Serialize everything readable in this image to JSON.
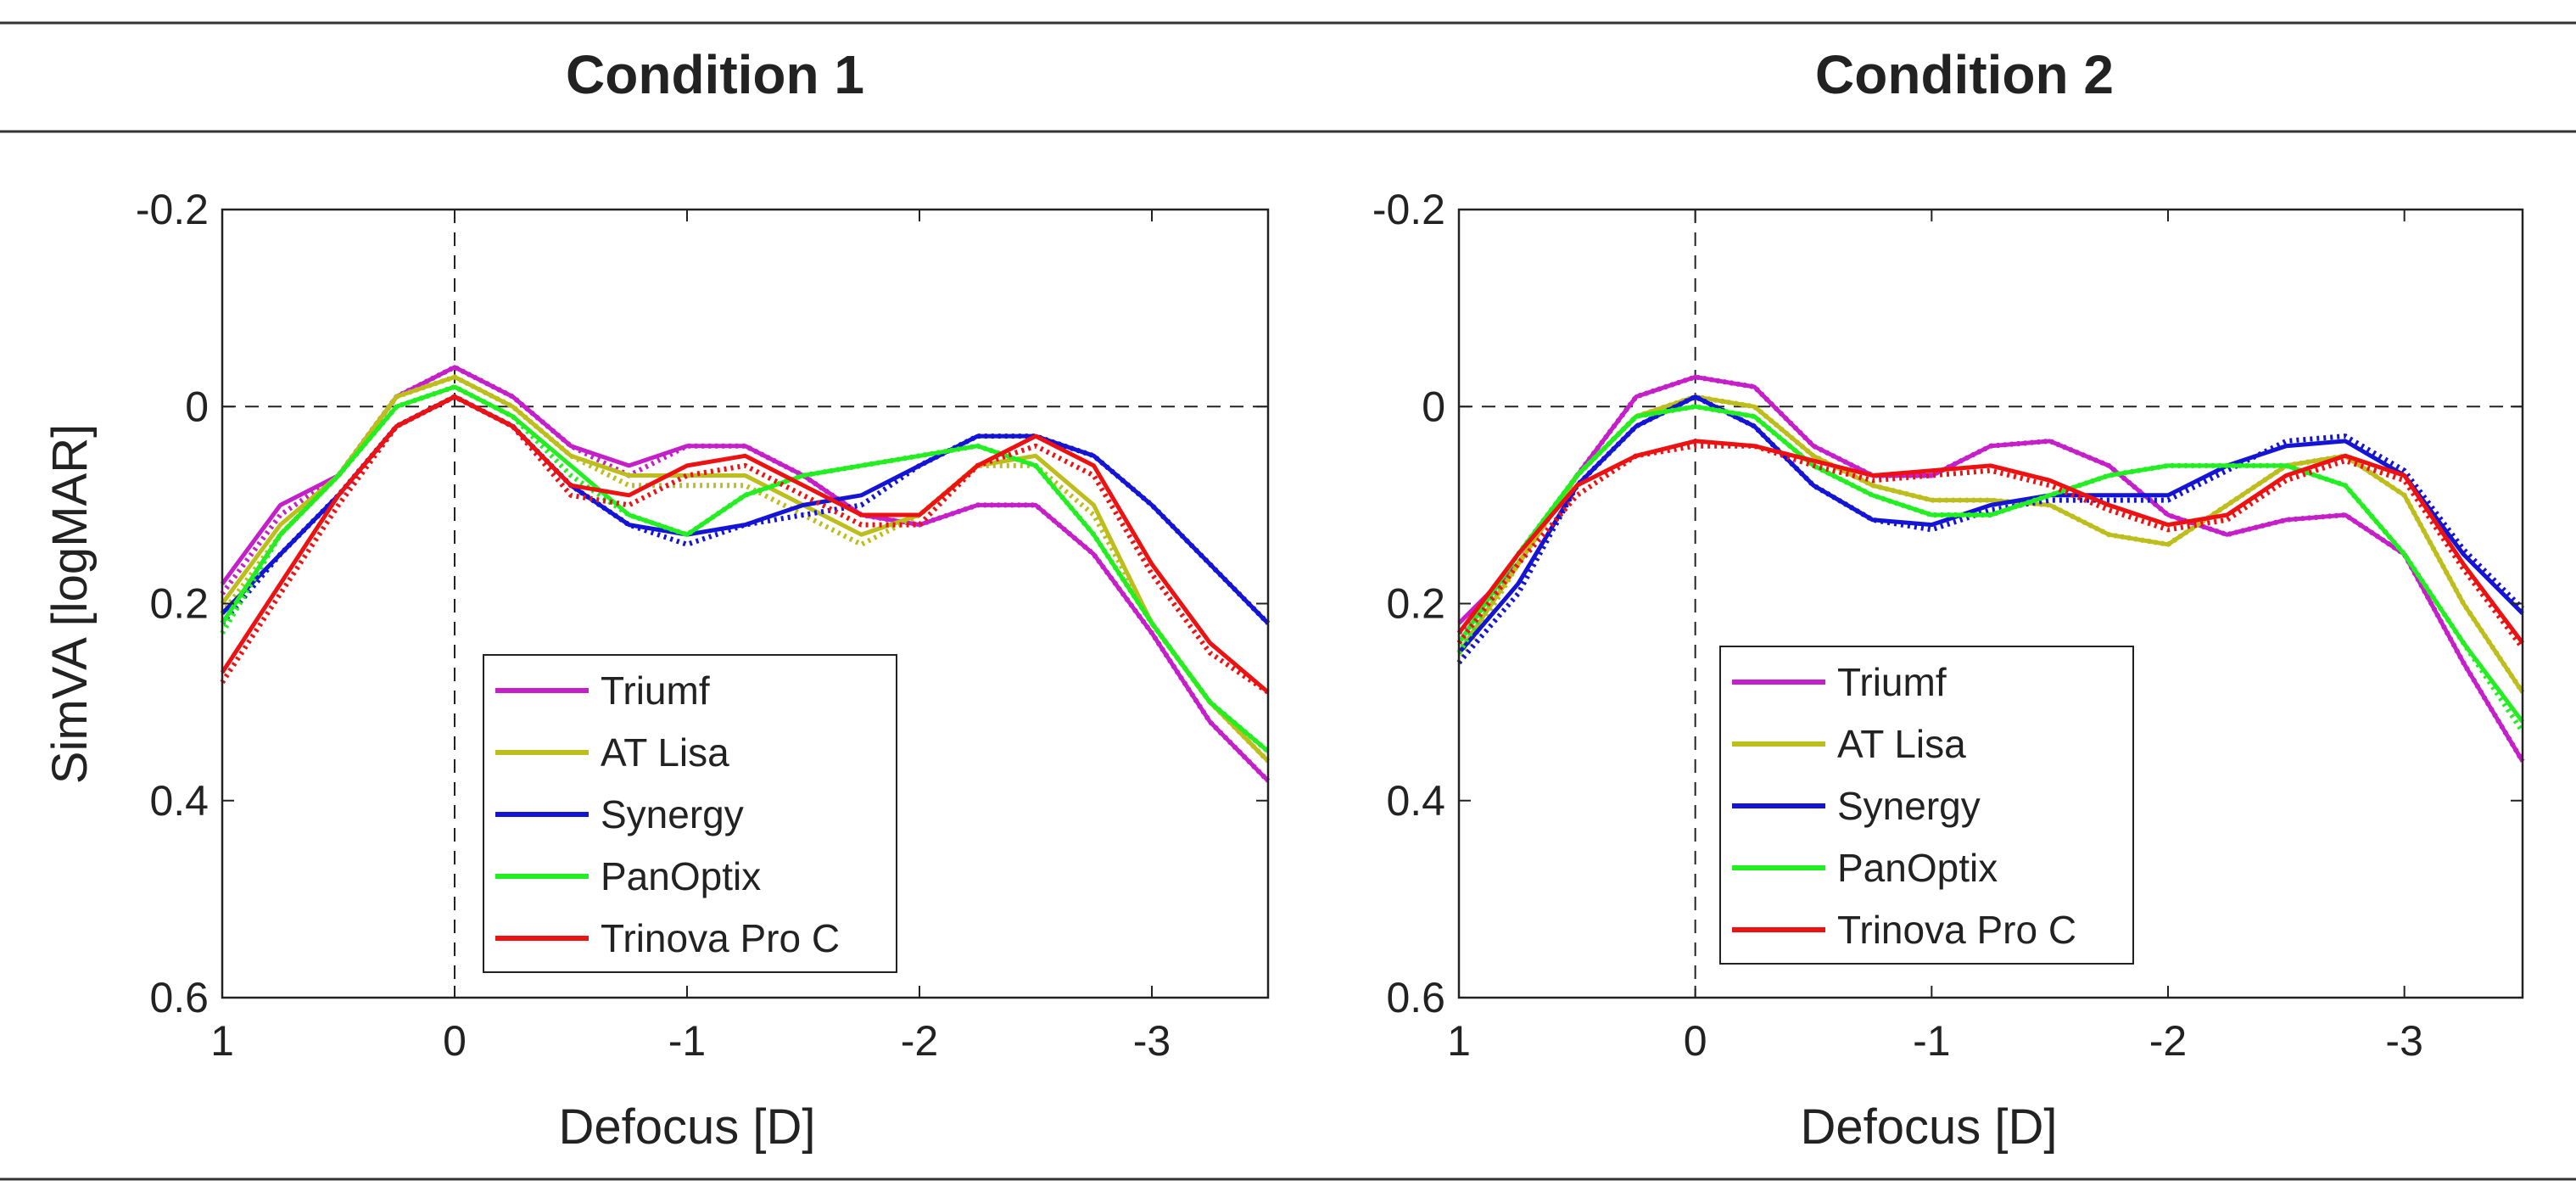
{
  "chart_data": [
    {
      "type": "line",
      "title": "Condition 1",
      "xlabel": "Defocus [D]",
      "ylabel": "SimVA [logMAR]",
      "xlim": [
        1,
        -3.5
      ],
      "ylim": [
        -0.2,
        0.6
      ],
      "y_reversed": true,
      "xticks": [
        1,
        0,
        -1,
        -2,
        -3
      ],
      "xtick_labels": [
        "1",
        "0",
        "-1",
        "-2",
        "-3"
      ],
      "yticks": [
        -0.2,
        0,
        0.2,
        0.4,
        0.6
      ],
      "ytick_labels": [
        "-0.2",
        "0",
        "0.2",
        "0.4",
        "0.6"
      ],
      "reference_lines": {
        "x": 0,
        "y": 0,
        "style": "dashed"
      },
      "legend_position": "bottom-center",
      "x": [
        1,
        0.75,
        0.5,
        0.25,
        0,
        -0.25,
        -0.5,
        -0.75,
        -1,
        -1.25,
        -1.5,
        -1.75,
        -2,
        -2.25,
        -2.5,
        -2.75,
        -3,
        -3.25,
        -3.5
      ],
      "series": [
        {
          "name": "Triumf",
          "color": "#c51fc9",
          "solid": [
            0.18,
            0.1,
            0.07,
            -0.01,
            -0.04,
            -0.01,
            0.04,
            0.06,
            0.04,
            0.04,
            0.07,
            0.11,
            0.12,
            0.1,
            0.1,
            0.15,
            0.23,
            0.32,
            0.38
          ],
          "dotted": [
            0.19,
            0.11,
            0.07,
            -0.01,
            -0.04,
            -0.01,
            0.04,
            0.07,
            0.04,
            0.04,
            0.07,
            0.11,
            0.12,
            0.1,
            0.1,
            0.15,
            0.23,
            0.32,
            0.38
          ]
        },
        {
          "name": "AT Lisa",
          "color": "#bdbd1c",
          "solid": [
            0.2,
            0.12,
            0.07,
            -0.01,
            -0.03,
            0,
            0.05,
            0.07,
            0.07,
            0.07,
            0.1,
            0.13,
            0.11,
            0.06,
            0.05,
            0.1,
            0.22,
            0.3,
            0.36
          ],
          "dotted": [
            0.21,
            0.13,
            0.07,
            -0.01,
            -0.03,
            0,
            0.05,
            0.08,
            0.08,
            0.08,
            0.11,
            0.14,
            0.11,
            0.06,
            0.06,
            0.11,
            0.22,
            0.3,
            0.36
          ]
        },
        {
          "name": "Synergy",
          "color": "#1414d6",
          "solid": [
            0.21,
            0.15,
            0.09,
            0.02,
            -0.01,
            0.02,
            0.08,
            0.12,
            0.13,
            0.12,
            0.1,
            0.09,
            0.06,
            0.03,
            0.03,
            0.05,
            0.1,
            0.16,
            0.22
          ],
          "dotted": [
            0.22,
            0.15,
            0.09,
            0.02,
            -0.01,
            0.02,
            0.08,
            0.12,
            0.14,
            0.12,
            0.11,
            0.1,
            0.06,
            0.03,
            0.03,
            0.05,
            0.1,
            0.16,
            0.22
          ]
        },
        {
          "name": "PanOptix",
          "color": "#22ee22",
          "solid": [
            0.22,
            0.13,
            0.07,
            0,
            -0.02,
            0.01,
            0.06,
            0.11,
            0.13,
            0.09,
            0.07,
            0.06,
            0.05,
            0.04,
            0.06,
            0.13,
            0.22,
            0.3,
            0.35
          ],
          "dotted": [
            0.23,
            0.13,
            0.07,
            0,
            -0.02,
            0.01,
            0.07,
            0.11,
            0.13,
            0.09,
            0.07,
            0.06,
            0.05,
            0.04,
            0.06,
            0.13,
            0.22,
            0.3,
            0.35
          ]
        },
        {
          "name": "Trinova Pro C",
          "color": "#ee1111",
          "solid": [
            0.27,
            0.18,
            0.09,
            0.02,
            -0.01,
            0.02,
            0.08,
            0.09,
            0.06,
            0.05,
            0.08,
            0.11,
            0.11,
            0.06,
            0.03,
            0.06,
            0.16,
            0.24,
            0.29
          ],
          "dotted": [
            0.28,
            0.19,
            0.1,
            0.02,
            -0.01,
            0.02,
            0.09,
            0.1,
            0.07,
            0.06,
            0.09,
            0.12,
            0.12,
            0.06,
            0.04,
            0.07,
            0.17,
            0.25,
            0.29
          ]
        }
      ]
    },
    {
      "type": "line",
      "title": "Condition 2",
      "xlabel": "Defocus [D]",
      "ylabel": "",
      "xlim": [
        1,
        -3.5
      ],
      "ylim": [
        -0.2,
        0.6
      ],
      "y_reversed": true,
      "xticks": [
        1,
        0,
        -1,
        -2,
        -3
      ],
      "xtick_labels": [
        "1",
        "0",
        "-1",
        "-2",
        "-3"
      ],
      "yticks": [
        -0.2,
        0,
        0.2,
        0.4,
        0.6
      ],
      "ytick_labels": [
        "-0.2",
        "0",
        "0.2",
        "0.4",
        "0.6"
      ],
      "reference_lines": {
        "x": 0,
        "y": 0,
        "style": "dashed"
      },
      "legend_position": "bottom-center",
      "x": [
        1,
        0.75,
        0.5,
        0.25,
        0,
        -0.25,
        -0.5,
        -0.75,
        -1,
        -1.25,
        -1.5,
        -1.75,
        -2,
        -2.25,
        -2.5,
        -2.75,
        -3,
        -3.25,
        -3.5
      ],
      "series": [
        {
          "name": "Triumf",
          "color": "#c51fc9",
          "solid": [
            0.22,
            0.16,
            0.07,
            -0.01,
            -0.03,
            -0.02,
            0.04,
            0.07,
            0.07,
            0.04,
            0.035,
            0.06,
            0.11,
            0.13,
            0.115,
            0.11,
            0.15,
            0.26,
            0.36
          ],
          "dotted": [
            0.23,
            0.16,
            0.07,
            -0.01,
            -0.03,
            -0.02,
            0.04,
            0.07,
            0.07,
            0.04,
            0.035,
            0.06,
            0.11,
            0.13,
            0.115,
            0.11,
            0.15,
            0.26,
            0.36
          ]
        },
        {
          "name": "AT Lisa",
          "color": "#bdbd1c",
          "solid": [
            0.25,
            0.16,
            0.07,
            0.01,
            -0.01,
            0,
            0.05,
            0.08,
            0.095,
            0.095,
            0.1,
            0.13,
            0.14,
            0.1,
            0.06,
            0.05,
            0.09,
            0.2,
            0.29
          ],
          "dotted": [
            0.26,
            0.16,
            0.07,
            0.01,
            -0.01,
            0,
            0.05,
            0.08,
            0.095,
            0.095,
            0.1,
            0.13,
            0.14,
            0.1,
            0.06,
            0.05,
            0.09,
            0.2,
            0.29
          ]
        },
        {
          "name": "Synergy",
          "color": "#1414d6",
          "solid": [
            0.25,
            0.18,
            0.08,
            0.02,
            -0.01,
            0.02,
            0.08,
            0.115,
            0.12,
            0.1,
            0.09,
            0.09,
            0.09,
            0.06,
            0.04,
            0.035,
            0.07,
            0.15,
            0.21
          ],
          "dotted": [
            0.26,
            0.19,
            0.08,
            0.02,
            -0.01,
            0.02,
            0.08,
            0.115,
            0.125,
            0.105,
            0.095,
            0.095,
            0.095,
            0.065,
            0.035,
            0.03,
            0.065,
            0.145,
            0.205
          ]
        },
        {
          "name": "PanOptix",
          "color": "#22ee22",
          "solid": [
            0.24,
            0.15,
            0.07,
            0.01,
            0,
            0.01,
            0.06,
            0.09,
            0.11,
            0.11,
            0.09,
            0.07,
            0.06,
            0.06,
            0.06,
            0.08,
            0.15,
            0.24,
            0.32
          ],
          "dotted": [
            0.25,
            0.15,
            0.07,
            0.01,
            0,
            0.01,
            0.06,
            0.09,
            0.11,
            0.11,
            0.09,
            0.07,
            0.06,
            0.06,
            0.06,
            0.08,
            0.15,
            0.24,
            0.33
          ]
        },
        {
          "name": "Trinova Pro C",
          "color": "#ee1111",
          "solid": [
            0.23,
            0.15,
            0.08,
            0.05,
            0.035,
            0.04,
            0.055,
            0.07,
            0.065,
            0.06,
            0.075,
            0.1,
            0.12,
            0.11,
            0.07,
            0.05,
            0.07,
            0.16,
            0.24
          ],
          "dotted": [
            0.24,
            0.16,
            0.09,
            0.05,
            0.04,
            0.04,
            0.06,
            0.075,
            0.07,
            0.065,
            0.08,
            0.105,
            0.125,
            0.115,
            0.075,
            0.055,
            0.075,
            0.165,
            0.245
          ]
        }
      ]
    }
  ]
}
